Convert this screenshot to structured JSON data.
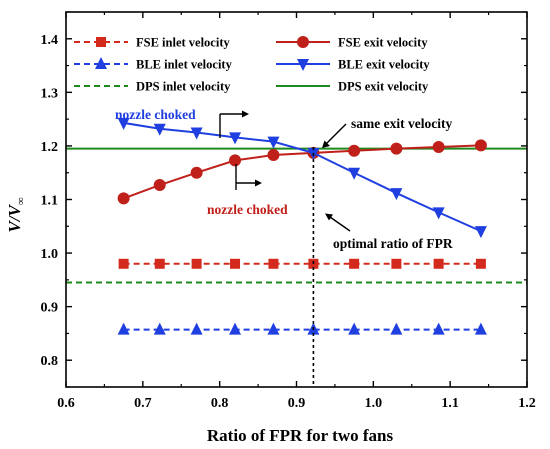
{
  "chart_data": {
    "type": "line",
    "xlabel": "Ratio of FPR for two fans",
    "ylabel_main": "V",
    "ylabel_den": "V",
    "ylabel_sub": "∞",
    "xlim": [
      0.6,
      1.2
    ],
    "ylim": [
      0.75,
      1.45
    ],
    "xticks": [
      0.6,
      0.7,
      0.8,
      0.9,
      1.0,
      1.1,
      1.2
    ],
    "xtick_labels": [
      "0.6",
      "0.7",
      "0.8",
      "0.9",
      "1.0",
      "1.1",
      "1.2"
    ],
    "yticks": [
      0.8,
      0.9,
      1.0,
      1.1,
      1.2,
      1.3,
      1.4
    ],
    "ytick_labels": [
      "0.8",
      "0.9",
      "1.0",
      "1.1",
      "1.2",
      "1.3",
      "1.4"
    ],
    "grid": false,
    "legend_position": "top",
    "series": [
      {
        "name": "FSE inlet velocity",
        "color": "#d42a1e",
        "dash": "dashed",
        "marker": "square",
        "x": [
          0.675,
          0.722,
          0.77,
          0.82,
          0.87,
          0.922,
          0.975,
          1.03,
          1.085,
          1.14
        ],
        "y": [
          0.98,
          0.98,
          0.98,
          0.98,
          0.98,
          0.98,
          0.98,
          0.98,
          0.98,
          0.98
        ]
      },
      {
        "name": "FSE exit velocity",
        "color": "#c0201a",
        "dash": "solid",
        "marker": "circle",
        "x": [
          0.675,
          0.722,
          0.77,
          0.82,
          0.87,
          0.922,
          0.975,
          1.03,
          1.085,
          1.14
        ],
        "y": [
          1.102,
          1.127,
          1.15,
          1.173,
          1.183,
          1.187,
          1.191,
          1.195,
          1.198,
          1.201
        ]
      },
      {
        "name": "BLE inlet velocity",
        "color": "#1f3fe0",
        "dash": "dashed",
        "marker": "triangle-up",
        "x": [
          0.675,
          0.722,
          0.77,
          0.82,
          0.87,
          0.922,
          0.975,
          1.03,
          1.085,
          1.14
        ],
        "y": [
          0.857,
          0.857,
          0.857,
          0.857,
          0.857,
          0.857,
          0.857,
          0.857,
          0.857,
          0.857
        ]
      },
      {
        "name": "BLE exit velocity",
        "color": "#1f3fe0",
        "dash": "solid",
        "marker": "triangle-down",
        "x": [
          0.675,
          0.722,
          0.77,
          0.82,
          0.87,
          0.922,
          0.975,
          1.03,
          1.085,
          1.14
        ],
        "y": [
          1.243,
          1.232,
          1.225,
          1.216,
          1.208,
          1.187,
          1.15,
          1.112,
          1.076,
          1.041
        ]
      },
      {
        "name": "DPS inlet velocity",
        "color": "#1e8a1e",
        "dash": "dashed",
        "marker": "none",
        "x": [
          0.6,
          1.2
        ],
        "y": [
          0.945,
          0.945
        ]
      },
      {
        "name": "DPS exit velocity",
        "color": "#1e8a1e",
        "dash": "solid",
        "marker": "none",
        "x": [
          0.6,
          1.2
        ],
        "y": [
          1.195,
          1.195
        ]
      }
    ],
    "annotations": [
      {
        "text": "nozzle choked",
        "color": "#1f3fe0"
      },
      {
        "text": "nozzle choked",
        "color": "#c0201a"
      },
      {
        "text": "same exit velocity",
        "color": "#000000"
      },
      {
        "text": "optimal ratio of FPR",
        "color": "#000000"
      }
    ],
    "vline_x": 0.922
  }
}
